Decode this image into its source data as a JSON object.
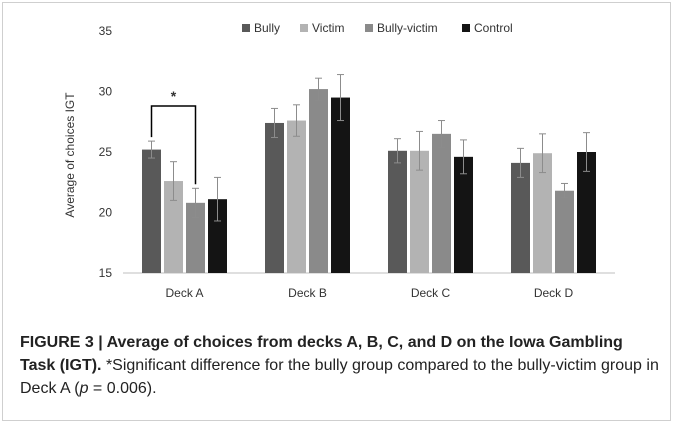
{
  "chart_data": {
    "type": "bar",
    "categories": [
      "Deck A",
      "Deck B",
      "Deck C",
      "Deck D"
    ],
    "series": [
      {
        "name": "Bully",
        "color": "#595959",
        "values": [
          25.2,
          27.4,
          25.1,
          24.1
        ],
        "errors": [
          0.7,
          1.2,
          1.0,
          1.2
        ]
      },
      {
        "name": "Victim",
        "color": "#b3b3b3",
        "values": [
          22.6,
          27.6,
          25.1,
          24.9
        ],
        "errors": [
          1.6,
          1.3,
          1.6,
          1.6
        ]
      },
      {
        "name": "Bully-victim",
        "color": "#8a8a8a",
        "values": [
          20.8,
          30.2,
          26.5,
          21.8
        ],
        "errors": [
          1.2,
          0.9,
          1.1,
          0.6
        ]
      },
      {
        "name": "Control",
        "color": "#141414",
        "values": [
          21.1,
          29.5,
          24.6,
          25.0
        ],
        "errors": [
          1.8,
          1.9,
          1.4,
          1.6
        ]
      }
    ],
    "ylabel": "Average of choices IGT",
    "ylim": [
      15,
      35
    ],
    "yticks": [
      15,
      20,
      25,
      30,
      35
    ],
    "grid": false,
    "legend": "top",
    "annotation": {
      "text": "*",
      "category": "Deck A",
      "from_series": "Bully",
      "to_series": "Bully-victim"
    }
  },
  "caption": {
    "label": "FIGURE 3 | Average of choices from decks A, B, C, and D on the Iowa Gambling Task (IGT).",
    "text_before_p": " *Significant difference for the bully group compared to the bully-victim group in Deck A (",
    "p_symbol": "p",
    "text_after_p": " = 0.006)."
  }
}
